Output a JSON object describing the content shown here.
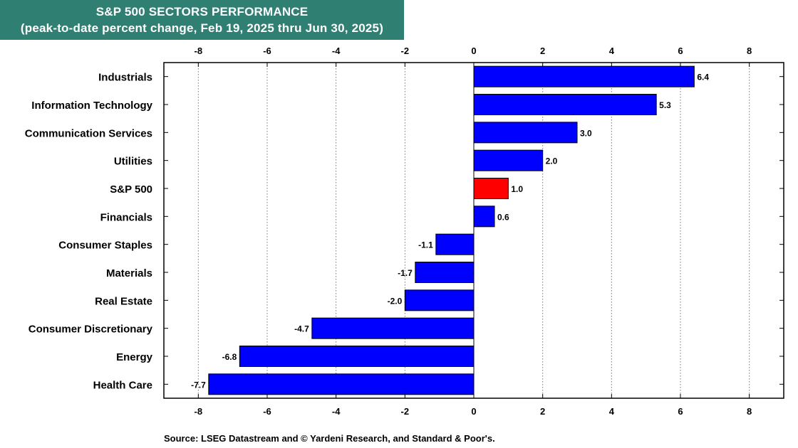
{
  "title": "S&P 500 SECTORS PERFORMANCE",
  "subtitle": "(peak-to-date percent change, Feb 19, 2025 thru Jun 30, 2025)",
  "source": "Source: LSEG Datastream and © Yardeni Research, and Standard & Poor's.",
  "colors": {
    "bar": "#0000ff",
    "highlight": "#ff0000",
    "title_bg": "#2f7f73"
  },
  "chart_data": {
    "type": "bar",
    "orientation": "horizontal",
    "title": "S&P 500 SECTORS PERFORMANCE",
    "subtitle": "(peak-to-date percent change, Feb 19, 2025 thru Jun 30, 2025)",
    "categories": [
      "Industrials",
      "Information Technology",
      "Communication Services",
      "Utilities",
      "S&P 500",
      "Financials",
      "Consumer Staples",
      "Materials",
      "Real Estate",
      "Consumer Discretionary",
      "Energy",
      "Health Care"
    ],
    "values": [
      6.4,
      5.3,
      3.0,
      2.0,
      1.0,
      0.6,
      -1.1,
      -1.7,
      -2.0,
      -4.7,
      -6.8,
      -7.7
    ],
    "value_labels": [
      "6.4",
      "5.3",
      "3.0",
      "2.0",
      "1.0",
      "0.6",
      "-1.1",
      "-1.7",
      "-2.0",
      "-4.7",
      "-6.8",
      "-7.7"
    ],
    "highlight_category": "S&P 500",
    "xlim": [
      -9,
      9
    ],
    "xticks": [
      -8,
      -6,
      -4,
      -2,
      0,
      2,
      4,
      6,
      8
    ],
    "xtick_labels": [
      "-8",
      "-6",
      "-4",
      "-2",
      "0",
      "2",
      "4",
      "6",
      "8"
    ],
    "axis_labels_top_and_bottom": true,
    "grid": "vertical dotted"
  }
}
